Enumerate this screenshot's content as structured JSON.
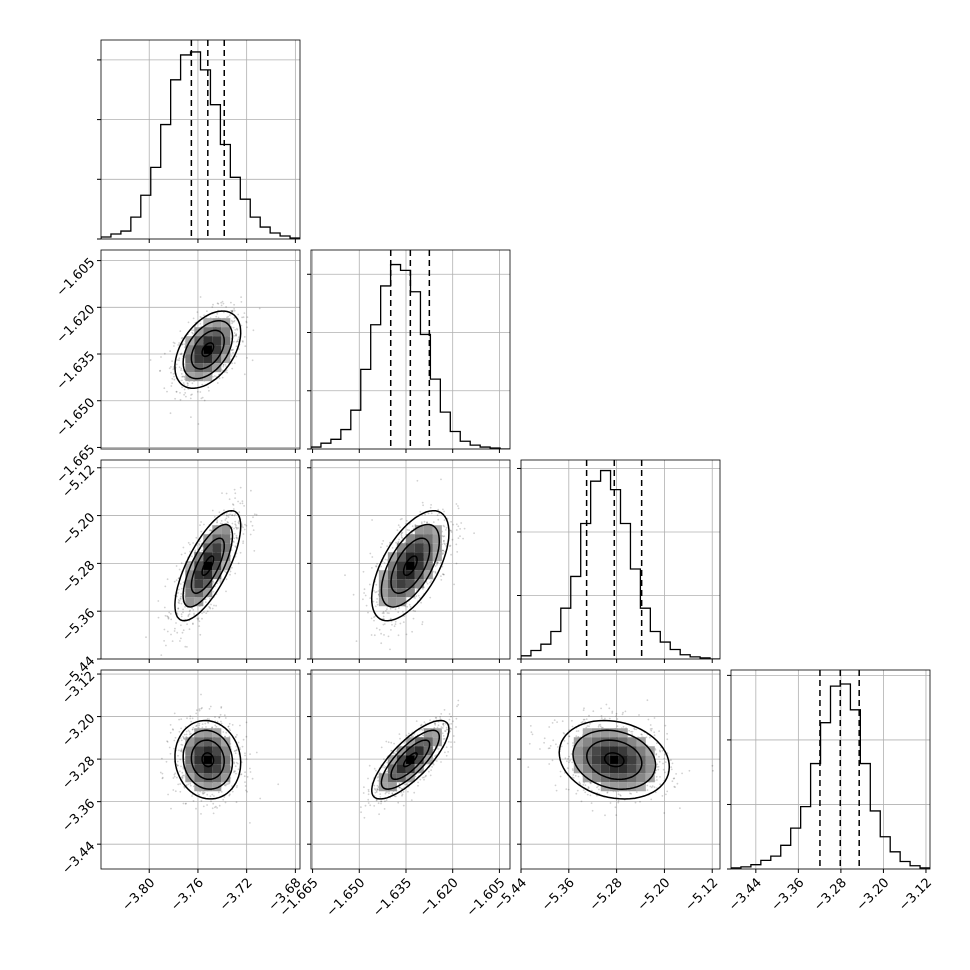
{
  "chart_data": {
    "type": "corner",
    "grid": true,
    "variables": [
      {
        "ticks": [
          -3.8,
          -3.76,
          -3.72,
          -3.68
        ],
        "tick_labels": [
          "−3.80",
          "−3.76",
          "−3.72",
          "−3.68"
        ],
        "range": [
          -3.8396,
          -3.6762
        ]
      },
      {
        "ticks": [
          -1.665,
          -1.65,
          -1.635,
          -1.62,
          -1.605
        ],
        "tick_labels": [
          "−1.665",
          "−1.650",
          "−1.635",
          "−1.620",
          "−1.605"
        ],
        "range": [
          -1.6655,
          -1.6016
        ]
      },
      {
        "ticks": [
          -5.44,
          -5.36,
          -5.28,
          -5.2,
          -5.12
        ],
        "tick_labels": [
          "−5.44",
          "−5.36",
          "−5.28",
          "−5.20",
          "−5.12"
        ],
        "range": [
          -5.44,
          -5.107
        ]
      },
      {
        "ticks": [
          -3.44,
          -3.36,
          -3.28,
          -3.2,
          -3.12
        ],
        "tick_labels": [
          "−3.44",
          "−3.36",
          "−3.28",
          "−3.20",
          "−3.12"
        ],
        "range": [
          -3.4867,
          -3.1124
        ]
      }
    ],
    "quantiles": [
      [
        -3.7654,
        -3.7519,
        -3.7384
      ],
      [
        -1.6399,
        -1.6336,
        -1.6275
      ],
      [
        -5.3302,
        -5.2839,
        -5.2381
      ],
      [
        -3.3194,
        -3.2812,
        -3.2456
      ]
    ],
    "marginals": [
      {
        "bins": 20,
        "counts": [
          2,
          5,
          8,
          22,
          44,
          72,
          115,
          160,
          185,
          188,
          170,
          135,
          95,
          62,
          40,
          22,
          12,
          6,
          3,
          1
        ],
        "ylim": [
          0,
          200
        ],
        "yticks": [
          0,
          60,
          120,
          180
        ]
      },
      {
        "bins": 20,
        "counts": [
          2,
          6,
          10,
          20,
          40,
          82,
          128,
          168,
          190,
          184,
          162,
          118,
          72,
          38,
          18,
          8,
          4,
          2,
          1,
          0
        ],
        "ylim": [
          0,
          205
        ],
        "yticks": [
          0,
          60,
          120,
          180
        ]
      },
      {
        "bins": 20,
        "counts": [
          3,
          8,
          14,
          26,
          48,
          78,
          128,
          168,
          178,
          160,
          128,
          85,
          48,
          26,
          16,
          9,
          4,
          2,
          1,
          0
        ],
        "ylim": [
          0,
          188
        ],
        "yticks": [
          0,
          60,
          120,
          180
        ]
      },
      {
        "bins": 20,
        "counts": [
          1,
          2,
          4,
          8,
          12,
          22,
          38,
          58,
          98,
          136,
          170,
          172,
          148,
          98,
          54,
          30,
          16,
          7,
          3,
          1
        ],
        "ylim": [
          0,
          185
        ],
        "yticks": [
          0,
          60,
          120,
          180
        ]
      }
    ],
    "pairs": [
      {
        "x": 0,
        "y": 1,
        "correlation": 0.45
      },
      {
        "x": 0,
        "y": 2,
        "correlation": 0.72
      },
      {
        "x": 1,
        "y": 2,
        "correlation": 0.6
      },
      {
        "x": 0,
        "y": 3,
        "correlation": -0.08
      },
      {
        "x": 1,
        "y": 3,
        "correlation": 0.78
      },
      {
        "x": 2,
        "y": 3,
        "correlation": -0.18
      }
    ]
  }
}
